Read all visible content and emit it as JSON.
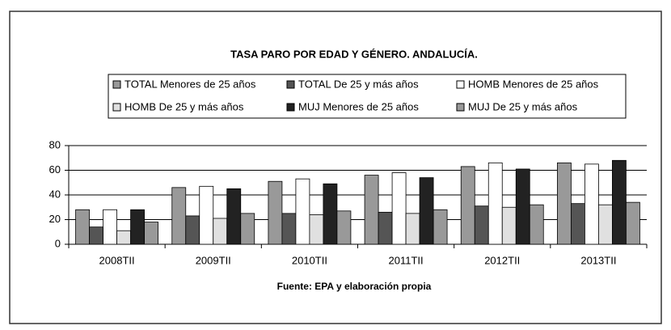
{
  "chart_data": {
    "type": "bar",
    "title": "TASA PARO POR EDAD Y GÉNERO. ANDALUCÍA.",
    "source": "Fuente: EPA y elaboración propia",
    "categories": [
      "2008TII",
      "2009TII",
      "2010TII",
      "2011TII",
      "2012TII",
      "2013TII"
    ],
    "series": [
      {
        "name": "TOTAL Menores de 25 años",
        "color": "#999999",
        "values": [
          28,
          46,
          51,
          56,
          63,
          66
        ]
      },
      {
        "name": "TOTAL De 25 y más años",
        "color": "#555555",
        "values": [
          14,
          23,
          25,
          26,
          31,
          33
        ]
      },
      {
        "name": "HOMB Menores de 25 años",
        "color": "#ffffff",
        "values": [
          28,
          47,
          53,
          58,
          66,
          65
        ]
      },
      {
        "name": "HOMB De 25 y más años",
        "color": "#e0e0e0",
        "values": [
          11,
          21,
          24,
          25,
          30,
          32
        ]
      },
      {
        "name": "MUJ Menores de 25 años",
        "color": "#222222",
        "values": [
          28,
          45,
          49,
          54,
          61,
          68
        ]
      },
      {
        "name": "MUJ De 25 y más años",
        "color": "#999999",
        "values": [
          18,
          25,
          27,
          28,
          32,
          34
        ]
      }
    ],
    "ylim": [
      0,
      80
    ],
    "yticks": [
      0,
      20,
      40,
      60,
      80
    ],
    "grid": true
  }
}
